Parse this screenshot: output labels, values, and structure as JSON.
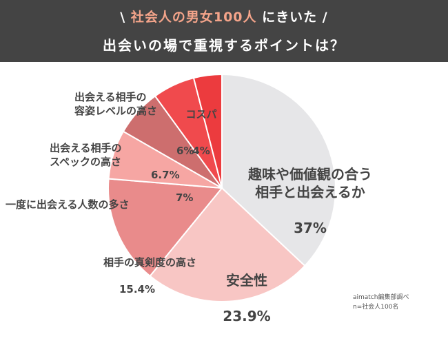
{
  "header": {
    "slash_left": "\\",
    "title_accent": "社会人の男女100人",
    "title_rest": "にきいた /",
    "subtitle": "出会いの場で重視するポイントは？"
  },
  "chart_data": {
    "type": "pie",
    "title": "出会いの場で重視するポイントは？",
    "start": "12 o'clock, clockwise",
    "slices": [
      {
        "label": "趣味や価値観の合う\n相手と出会えるか",
        "value": 37,
        "value_label": "37%",
        "color": "#e6e6e8"
      },
      {
        "label": "安全性",
        "value": 23.9,
        "value_label": "23.9%",
        "color": "#f8c6c4"
      },
      {
        "label": "相手の真剣度の高さ",
        "value": 15.4,
        "value_label": "15.4%",
        "color": "#e98b8b"
      },
      {
        "label": "一度に出会える人数の多さ",
        "value": 7,
        "value_label": "7%",
        "color": "#f6a6a3"
      },
      {
        "label": "出会える相手の\nスペックの高さ",
        "value": 6.7,
        "value_label": "6.7%",
        "color": "#cd6e6e"
      },
      {
        "label": "出会える相手の\n容姿レベルの高さ",
        "value": 6,
        "value_label": "6%",
        "color": "#f04a4d"
      },
      {
        "label": "コスパ",
        "value": 4,
        "value_label": "4%",
        "color": "#ec3b3e"
      }
    ]
  },
  "credit": {
    "source": "aimatch編集部調べ",
    "sample": "n=社会人100名"
  }
}
